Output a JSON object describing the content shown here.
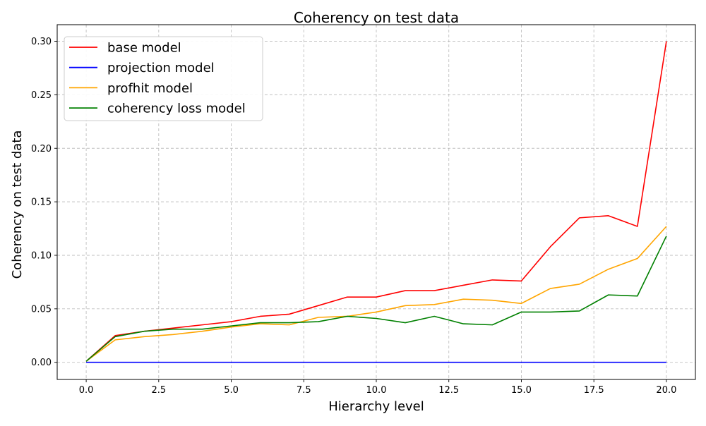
{
  "chart_data": {
    "type": "line",
    "title": "Coherency on test data",
    "xlabel": "Hierarchy level",
    "ylabel": "Coherency on test data",
    "xlim": [
      -1,
      21
    ],
    "ylim": [
      -0.016,
      0.3155
    ],
    "xticks": [
      0.0,
      2.5,
      5.0,
      7.5,
      10.0,
      12.5,
      15.0,
      17.5,
      20.0
    ],
    "xtick_labels": [
      "0.0",
      "2.5",
      "5.0",
      "7.5",
      "10.0",
      "12.5",
      "15.0",
      "17.5",
      "20.0"
    ],
    "yticks": [
      0.0,
      0.05,
      0.1,
      0.15,
      0.2,
      0.25,
      0.3
    ],
    "ytick_labels": [
      "0.00",
      "0.05",
      "0.10",
      "0.15",
      "0.20",
      "0.25",
      "0.30"
    ],
    "grid": true,
    "legend_position": "top-left",
    "x": [
      0,
      1,
      2,
      3,
      4,
      5,
      6,
      7,
      8,
      9,
      10,
      11,
      12,
      13,
      14,
      15,
      16,
      17,
      18,
      19,
      20
    ],
    "series": [
      {
        "name": "base model",
        "color": "#ff0000",
        "values": [
          0.001,
          0.025,
          0.029,
          0.032,
          0.035,
          0.038,
          0.043,
          0.045,
          0.053,
          0.061,
          0.061,
          0.067,
          0.067,
          0.072,
          0.077,
          0.076,
          0.108,
          0.135,
          0.137,
          0.127,
          0.3
        ]
      },
      {
        "name": "projection model",
        "color": "#0000ff",
        "values": [
          0.0,
          0.0,
          0.0,
          0.0,
          0.0,
          0.0,
          0.0,
          0.0,
          0.0,
          0.0,
          0.0,
          0.0,
          0.0,
          0.0,
          0.0,
          0.0,
          0.0,
          0.0,
          0.0,
          0.0,
          0.0
        ]
      },
      {
        "name": "profhit model",
        "color": "#ffa500",
        "values": [
          0.001,
          0.021,
          0.024,
          0.026,
          0.029,
          0.033,
          0.036,
          0.035,
          0.042,
          0.043,
          0.047,
          0.053,
          0.054,
          0.059,
          0.058,
          0.055,
          0.069,
          0.073,
          0.087,
          0.097,
          0.127
        ]
      },
      {
        "name": "coherency loss model",
        "color": "#008000",
        "values": [
          0.001,
          0.024,
          0.029,
          0.031,
          0.031,
          0.034,
          0.037,
          0.037,
          0.038,
          0.043,
          0.041,
          0.037,
          0.043,
          0.036,
          0.035,
          0.047,
          0.047,
          0.048,
          0.063,
          0.062,
          0.118
        ]
      }
    ]
  }
}
